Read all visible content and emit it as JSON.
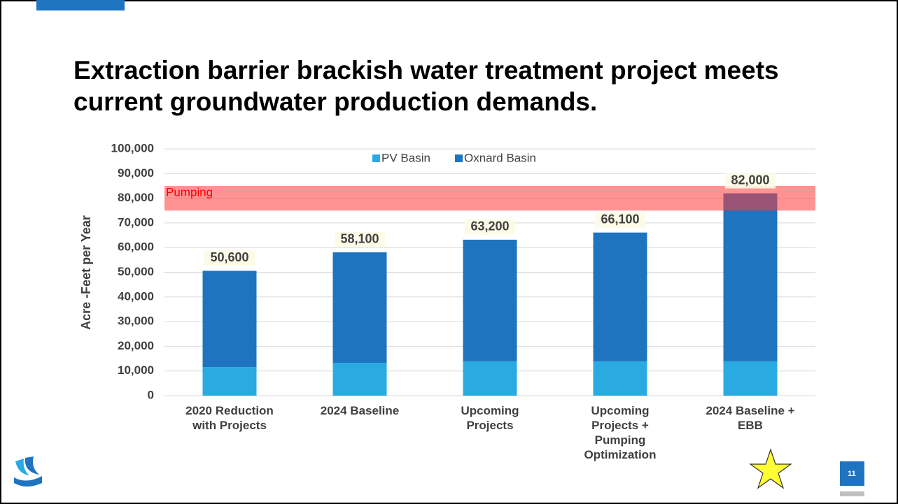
{
  "chart_data": {
    "type": "stacked_bar",
    "title": "Extraction barrier brackish water treatment project meets current groundwater production demands.",
    "y_label": "Acre -Feet per Year",
    "categories": [
      "2020 Reduction with Projects",
      "2024 Baseline",
      "Upcoming Projects",
      "Upcoming Projects + Pumping Optimization",
      "2024 Baseline + EBB"
    ],
    "series": [
      {
        "name": "PV Basin",
        "color": "#29abe2",
        "values": [
          11600,
          13300,
          13900,
          13900,
          13900
        ]
      },
      {
        "name": "Oxnard Basin",
        "color": "#1f74bf",
        "values": [
          39000,
          44800,
          49300,
          52200,
          68100
        ]
      }
    ],
    "totals": [
      50600,
      58100,
      63200,
      66100,
      82000
    ],
    "total_labels": [
      "50,600",
      "58,100",
      "63,200",
      "66,100",
      "82,000"
    ],
    "band": {
      "label": "Pumping",
      "range": [
        75000,
        85000
      ],
      "color": "#ff3b3b"
    },
    "ylim": [
      0,
      100000
    ],
    "yticks": [
      0,
      {
        "value": 10000,
        "label": "10,000"
      },
      {
        "value": 20000,
        "label": "20,000"
      },
      {
        "value": 30000,
        "label": "30,000"
      },
      {
        "value": 40000,
        "label": "40,000"
      },
      {
        "value": 50000,
        "label": "50,000"
      },
      {
        "value": 60000,
        "label": "60,000"
      },
      {
        "value": 70000,
        "label": "70,000"
      },
      {
        "value": 80000,
        "label": "80,000"
      },
      {
        "value": 90000,
        "label": "90,000"
      },
      {
        "value": 100000,
        "label": "100,000"
      }
    ],
    "grid": true,
    "legend": "top"
  },
  "slide": {
    "page_number": "11"
  }
}
